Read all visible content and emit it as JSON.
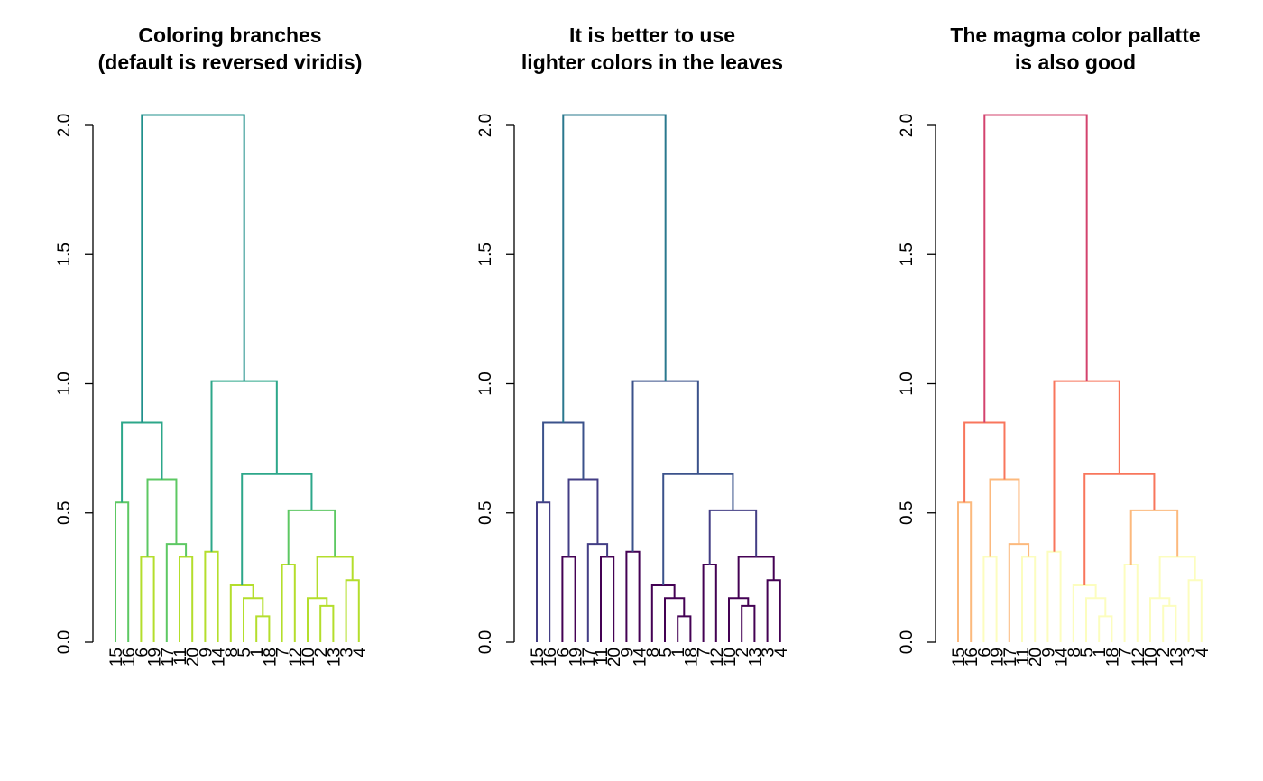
{
  "chart_data": [
    {
      "type": "dendrogram",
      "title_lines": [
        "Coloring branches",
        "(default is reversed viridis)"
      ],
      "palette_note": "reversed viridis",
      "colors": {
        "root": "#21908C",
        "upper": "#2DA78A",
        "mid": "#5DC863",
        "leaf": "#B4DE2C"
      },
      "yticks": [
        0.0,
        0.5,
        1.0,
        1.5,
        2.0
      ],
      "ylim": [
        0,
        2.0
      ],
      "leaves": [
        "15",
        "16",
        "6",
        "19",
        "17",
        "11",
        "20",
        "9",
        "14",
        "8",
        "5",
        "1",
        "18",
        "7",
        "12",
        "10",
        "2",
        "13",
        "3",
        "4"
      ],
      "merges": [
        {
          "a": "1",
          "b": "18",
          "height": 0.1
        },
        {
          "a": "2",
          "b": "13",
          "height": 0.14
        },
        {
          "a": "5",
          "b": "(1,18)",
          "height": 0.17
        },
        {
          "a": "10",
          "b": "(2,13)",
          "height": 0.17
        },
        {
          "a": "8",
          "b": "(5,1,18)",
          "height": 0.22
        },
        {
          "a": "3",
          "b": "4",
          "height": 0.24
        },
        {
          "a": "7",
          "b": "12",
          "height": 0.3
        },
        {
          "a": "6",
          "b": "19",
          "height": 0.33
        },
        {
          "a": "11",
          "b": "20",
          "height": 0.33
        },
        {
          "a": "(10,2,13)",
          "b": "(3,4)",
          "height": 0.33
        },
        {
          "a": "9",
          "b": "14",
          "height": 0.35
        },
        {
          "a": "17",
          "b": "(11,20)",
          "height": 0.38
        },
        {
          "a": "(7,12)",
          "b": "(10,2,13,3,4)",
          "height": 0.51
        },
        {
          "a": "15",
          "b": "16",
          "height": 0.54
        },
        {
          "a": "(6,19)",
          "b": "(17,11,20)",
          "height": 0.63
        },
        {
          "a": "(8,5,1,18)",
          "b": "(7,12,10,2,13,3,4)",
          "height": 0.65
        },
        {
          "a": "(15,16)",
          "b": "(6,19,17,11,20)",
          "height": 0.85
        },
        {
          "a": "(9,14)",
          "b": "(8,...,4)",
          "height": 1.01
        },
        {
          "a": "left",
          "b": "right",
          "height": 2.04
        }
      ]
    },
    {
      "type": "dendrogram",
      "title_lines": [
        "It is better to use",
        "lighter colors in the leaves"
      ],
      "palette_note": "viridis",
      "colors": {
        "root": "#2A788E",
        "upper": "#3B528B",
        "mid": "#433E85",
        "leaf": "#440154"
      },
      "yticks": [
        0.0,
        0.5,
        1.0,
        1.5,
        2.0
      ],
      "ylim": [
        0,
        2.0
      ],
      "leaves": [
        "15",
        "16",
        "6",
        "19",
        "17",
        "11",
        "20",
        "9",
        "14",
        "8",
        "5",
        "1",
        "18",
        "7",
        "12",
        "10",
        "2",
        "13",
        "3",
        "4"
      ]
    },
    {
      "type": "dendrogram",
      "title_lines": [
        "The magma color pallatte",
        "is also good"
      ],
      "palette_note": "magma",
      "colors": {
        "root": "#D3436E",
        "upper": "#F8765C",
        "mid": "#FCB97D",
        "leaf": "#FCFDBF"
      },
      "yticks": [
        0.0,
        0.5,
        1.0,
        1.5,
        2.0
      ],
      "ylim": [
        0,
        2.0
      ],
      "leaves": [
        "15",
        "16",
        "6",
        "19",
        "17",
        "11",
        "20",
        "9",
        "14",
        "8",
        "5",
        "1",
        "18",
        "7",
        "12",
        "10",
        "2",
        "13",
        "3",
        "4"
      ]
    }
  ]
}
